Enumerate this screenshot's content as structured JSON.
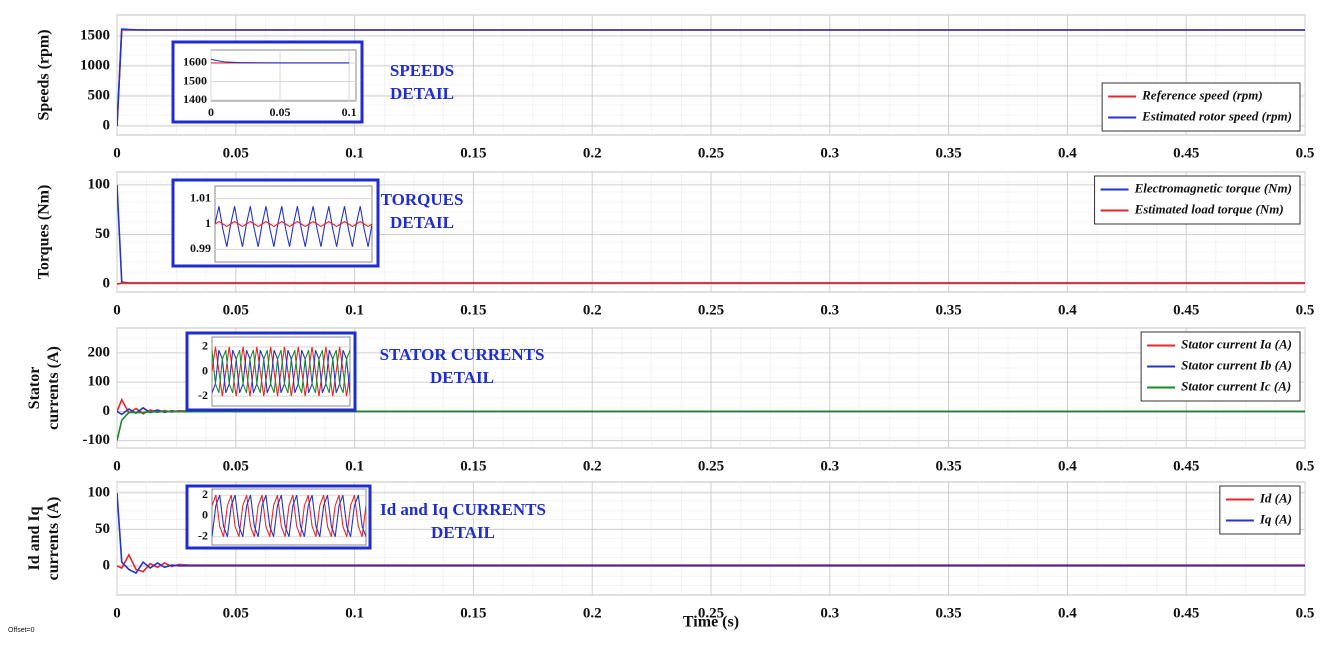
{
  "chart_data": [
    {
      "type": "line",
      "ylabel": [
        "Speeds (rpm)"
      ],
      "grid": true,
      "legend": "lower right",
      "x": [
        0,
        0.002,
        0.005,
        0.008,
        0.011,
        0.014,
        0.017,
        0.02,
        0.023,
        0.026,
        0.03,
        0.05,
        0.5
      ],
      "xlim": [
        0,
        0.5
      ],
      "xticks": [
        0,
        0.05,
        0.1,
        0.15,
        0.2,
        0.25,
        0.3,
        0.35,
        0.4,
        0.45,
        0.5
      ],
      "ylim": [
        -150,
        1850
      ],
      "yticks": [
        0,
        500,
        1000,
        1500
      ],
      "series": [
        {
          "name": "Reference speed (rpm)",
          "color": "#e8262a",
          "values": [
            0,
            1600,
            1600,
            1600,
            1600,
            1600,
            1600,
            1600,
            1600,
            1600,
            1600,
            1600,
            1600
          ]
        },
        {
          "name": "Estimated rotor speed (rpm)",
          "color": "#2433c8",
          "values": [
            0,
            1615,
            1608,
            1603,
            1601,
            1600,
            1600,
            1600,
            1600,
            1600,
            1600,
            1600,
            1600
          ]
        }
      ],
      "annotation": [
        "SPEEDS",
        "DETAIL"
      ],
      "inset": {
        "x": [
          0,
          0.005,
          0.01,
          0.02,
          0.05,
          0.1
        ],
        "xlim": [
          0,
          0.105
        ],
        "xticks": [
          0,
          0.05,
          0.1
        ],
        "ylim": [
          1395,
          1670
        ],
        "yticks": [
          1400,
          1500,
          1600
        ],
        "series": [
          {
            "color": "#e8262a",
            "values": [
              1600,
              1600,
              1600,
              1600,
              1600,
              1600
            ]
          },
          {
            "color": "#2433c8",
            "values": [
              1620,
              1612,
              1606,
              1602,
              1600,
              1600
            ]
          }
        ]
      }
    },
    {
      "type": "line",
      "ylabel": [
        "Torques (Nm)"
      ],
      "grid": true,
      "legend": "upper right",
      "x": [
        0,
        0.002,
        0.005,
        0.008,
        0.011,
        0.014,
        0.017,
        0.02,
        0.023,
        0.026,
        0.03,
        0.05,
        0.5
      ],
      "xlim": [
        0,
        0.5
      ],
      "xticks": [
        0,
        0.05,
        0.1,
        0.15,
        0.2,
        0.25,
        0.3,
        0.35,
        0.4,
        0.45,
        0.5
      ],
      "ylim": [
        -8,
        113
      ],
      "yticks": [
        0,
        50,
        100
      ],
      "series": [
        {
          "name": "Electromagnetic torque (Nm)",
          "color": "#2433c8",
          "values": [
            100,
            2,
            1,
            1,
            1,
            1,
            1,
            1,
            1,
            1,
            1,
            1,
            1
          ]
        },
        {
          "name": "Estimated load torque (Nm)",
          "color": "#e8262a",
          "values": [
            0,
            1,
            1,
            1,
            1,
            1,
            1,
            1,
            1,
            1,
            1,
            1,
            1
          ]
        }
      ],
      "annotation": [
        "TORQUES",
        "DETAIL"
      ],
      "inset": {
        "x": [
          0,
          0.0025,
          0.005,
          0.0075,
          0.01,
          0.0125,
          0.015,
          0.0175,
          0.02,
          0.0225,
          0.025,
          0.0275,
          0.03,
          0.0325,
          0.035,
          0.0375,
          0.04,
          0.0425,
          0.045,
          0.0475,
          0.05,
          0.0525,
          0.055,
          0.0575,
          0.06,
          0.0625,
          0.065,
          0.0675,
          0.07,
          0.0725,
          0.075,
          0.0775,
          0.08,
          0.0825,
          0.085,
          0.0875,
          0.09,
          0.0925,
          0.095,
          0.0975,
          0.1
        ],
        "xlim": [
          0,
          0.1
        ],
        "ylim": [
          0.985,
          1.015
        ],
        "yticks": [
          0.99,
          1,
          1.01
        ],
        "series": [
          {
            "color": "#2433c8",
            "values": [
              1,
              1.007,
              0.998,
              0.991,
              1,
              1.007,
              0.998,
              0.991,
              1,
              1.007,
              0.998,
              0.991,
              1,
              1.007,
              0.998,
              0.991,
              1,
              1.007,
              0.998,
              0.991,
              1,
              1.007,
              0.998,
              0.991,
              1,
              1.007,
              0.998,
              0.991,
              1,
              1.007,
              0.998,
              0.991,
              1,
              1.007,
              0.998,
              0.991,
              1,
              1.007,
              0.998,
              0.991,
              1
            ]
          },
          {
            "color": "#e8262a",
            "values": [
              1,
              1.001,
              1,
              0.999,
              1,
              1.001,
              1,
              0.999,
              1,
              1.001,
              1,
              0.999,
              1,
              1.001,
              1,
              0.999,
              1,
              1.001,
              1,
              0.999,
              1,
              1.001,
              1,
              0.999,
              1,
              1.001,
              1,
              0.999,
              1,
              1.001,
              1,
              0.999,
              1,
              1.001,
              1,
              0.999,
              1,
              1.001,
              1,
              0.999,
              1
            ]
          }
        ]
      }
    },
    {
      "type": "line",
      "ylabel": [
        "Stator",
        "currents (A)"
      ],
      "grid": true,
      "legend": "upper right",
      "x": [
        0,
        0.002,
        0.005,
        0.008,
        0.011,
        0.014,
        0.017,
        0.02,
        0.023,
        0.026,
        0.03,
        0.05,
        0.5
      ],
      "xlim": [
        0,
        0.5
      ],
      "xticks": [
        0,
        0.05,
        0.1,
        0.15,
        0.2,
        0.25,
        0.3,
        0.35,
        0.4,
        0.45,
        0.5
      ],
      "ylim": [
        -125,
        285
      ],
      "yticks": [
        -100,
        0,
        100,
        200
      ],
      "series": [
        {
          "name": "Stator current Ia (A)",
          "color": "#e8262a",
          "values": [
            0,
            40,
            -5,
            10,
            -8,
            5,
            -3,
            3,
            -2,
            2,
            1,
            0,
            0
          ]
        },
        {
          "name": "Stator current Ib (A)",
          "color": "#2433c8",
          "values": [
            0,
            -10,
            8,
            -6,
            12,
            -4,
            5,
            -3,
            2,
            -1,
            0,
            0,
            0
          ]
        },
        {
          "name": "Stator current Ic (A)",
          "color": "#1a8a2a",
          "values": [
            -100,
            -30,
            -3,
            -4,
            -4,
            -1,
            -2,
            0,
            0,
            -1,
            -1,
            0,
            0
          ]
        }
      ],
      "annotation": [
        "STATOR CURRENTS",
        "DETAIL"
      ],
      "inset": {
        "x": [
          0,
          0.0025,
          0.005,
          0.0075,
          0.01,
          0.0125,
          0.015,
          0.0175,
          0.02,
          0.0225,
          0.025,
          0.0275,
          0.03,
          0.0325,
          0.035,
          0.0375,
          0.04,
          0.0425,
          0.045,
          0.0475,
          0.05,
          0.0525,
          0.055,
          0.0575,
          0.06,
          0.0625,
          0.065,
          0.0675,
          0.07,
          0.0725,
          0.075,
          0.0775,
          0.08,
          0.0825,
          0.085,
          0.0875,
          0.09,
          0.0925,
          0.095,
          0.0975,
          0.1
        ],
        "xlim": [
          0,
          0.1
        ],
        "ylim": [
          -2.8,
          2.8
        ],
        "yticks": [
          -2,
          0,
          2
        ],
        "series": [
          {
            "color": "#e8262a",
            "values": [
              0,
              2,
              0,
              -2,
              0,
              2,
              0,
              -2,
              0,
              2,
              0,
              -2,
              0,
              2,
              0,
              -2,
              0,
              2,
              0,
              -2,
              0,
              2,
              0,
              -2,
              0,
              2,
              0,
              -2,
              0,
              2,
              0,
              -2,
              0,
              2,
              0,
              -2,
              0,
              2,
              0,
              -2,
              0
            ]
          },
          {
            "color": "#2433c8",
            "values": [
              -1.73,
              -1,
              1.73,
              1,
              -1.73,
              -1,
              1.73,
              1,
              -1.73,
              -1,
              1.73,
              1,
              -1.73,
              -1,
              1.73,
              1,
              -1.73,
              -1,
              1.73,
              1,
              -1.73,
              -1,
              1.73,
              1,
              -1.73,
              -1,
              1.73,
              1,
              -1.73,
              -1,
              1.73,
              1,
              -1.73,
              -1,
              1.73,
              1,
              -1.73,
              -1,
              1.73,
              1,
              -1.73
            ]
          },
          {
            "color": "#1a8a2a",
            "values": [
              1.73,
              -1,
              -1.73,
              1,
              1.73,
              -1,
              -1.73,
              1,
              1.73,
              -1,
              -1.73,
              1,
              1.73,
              -1,
              -1.73,
              1,
              1.73,
              -1,
              -1.73,
              1,
              1.73,
              -1,
              -1.73,
              1,
              1.73,
              -1,
              -1.73,
              1,
              1.73,
              -1,
              -1.73,
              1,
              1.73,
              -1,
              -1.73,
              1,
              1.73,
              -1,
              -1.73,
              1,
              1.73
            ]
          }
        ]
      }
    },
    {
      "type": "line",
      "ylabel": [
        "Id and Iq",
        "currents (A)"
      ],
      "grid": true,
      "legend": "upper right",
      "x": [
        0,
        0.002,
        0.005,
        0.008,
        0.011,
        0.014,
        0.017,
        0.02,
        0.023,
        0.026,
        0.03,
        0.05,
        0.5
      ],
      "xlim": [
        0,
        0.5
      ],
      "xticks": [
        0,
        0.05,
        0.1,
        0.15,
        0.2,
        0.25,
        0.3,
        0.35,
        0.4,
        0.45,
        0.5
      ],
      "ylim": [
        -40,
        115
      ],
      "yticks": [
        0,
        50,
        100
      ],
      "xlabel": "Time (s)",
      "note": "Offset=0",
      "series": [
        {
          "name": "Id (A)",
          "color": "#e8262a",
          "values": [
            0,
            -3,
            15,
            -5,
            -8,
            3,
            -2,
            4,
            -1,
            2,
            1,
            1,
            1
          ]
        },
        {
          "name": "Iq (A)",
          "color": "#2433c8",
          "values": [
            100,
            5,
            -5,
            -10,
            5,
            -3,
            4,
            -2,
            1,
            0,
            0,
            0,
            0
          ]
        }
      ],
      "annotation": [
        "Id and Iq CURRENTS",
        "DETAIL"
      ],
      "inset": {
        "x": [
          0,
          0.0025,
          0.005,
          0.0075,
          0.01,
          0.0125,
          0.015,
          0.0175,
          0.02,
          0.0225,
          0.025,
          0.0275,
          0.03,
          0.0325,
          0.035,
          0.0375,
          0.04,
          0.0425,
          0.045,
          0.0475,
          0.05,
          0.0525,
          0.055,
          0.0575,
          0.06,
          0.0625,
          0.065,
          0.0675,
          0.07,
          0.0725,
          0.075,
          0.0775,
          0.08,
          0.0825,
          0.085,
          0.0875,
          0.09,
          0.0925,
          0.095,
          0.0975,
          0.1
        ],
        "xlim": [
          0,
          0.1
        ],
        "ylim": [
          -2.8,
          2.6
        ],
        "yticks": [
          -2,
          0,
          2
        ],
        "series": [
          {
            "color": "#e8262a",
            "values": [
              1,
              2,
              -1,
              -2,
              1,
              2,
              -1,
              -2,
              1,
              2,
              -1,
              -2,
              1,
              2,
              -1,
              -2,
              1,
              2,
              -1,
              -2,
              1,
              2,
              -1,
              -2,
              1,
              2,
              -1,
              -2,
              1,
              2,
              -1,
              -2,
              1,
              2,
              -1,
              -2,
              1,
              2,
              -1,
              -2,
              1
            ]
          },
          {
            "color": "#2433c8",
            "values": [
              -2,
              1,
              2,
              -1,
              -2,
              1,
              2,
              -1,
              -2,
              1,
              2,
              -1,
              -2,
              1,
              2,
              -1,
              -2,
              1,
              2,
              -1,
              -2,
              1,
              2,
              -1,
              -2,
              1,
              2,
              -1,
              -2,
              1,
              2,
              -1,
              -2,
              1,
              2,
              -1,
              -2,
              1,
              2,
              -1,
              -2
            ]
          }
        ]
      }
    }
  ]
}
